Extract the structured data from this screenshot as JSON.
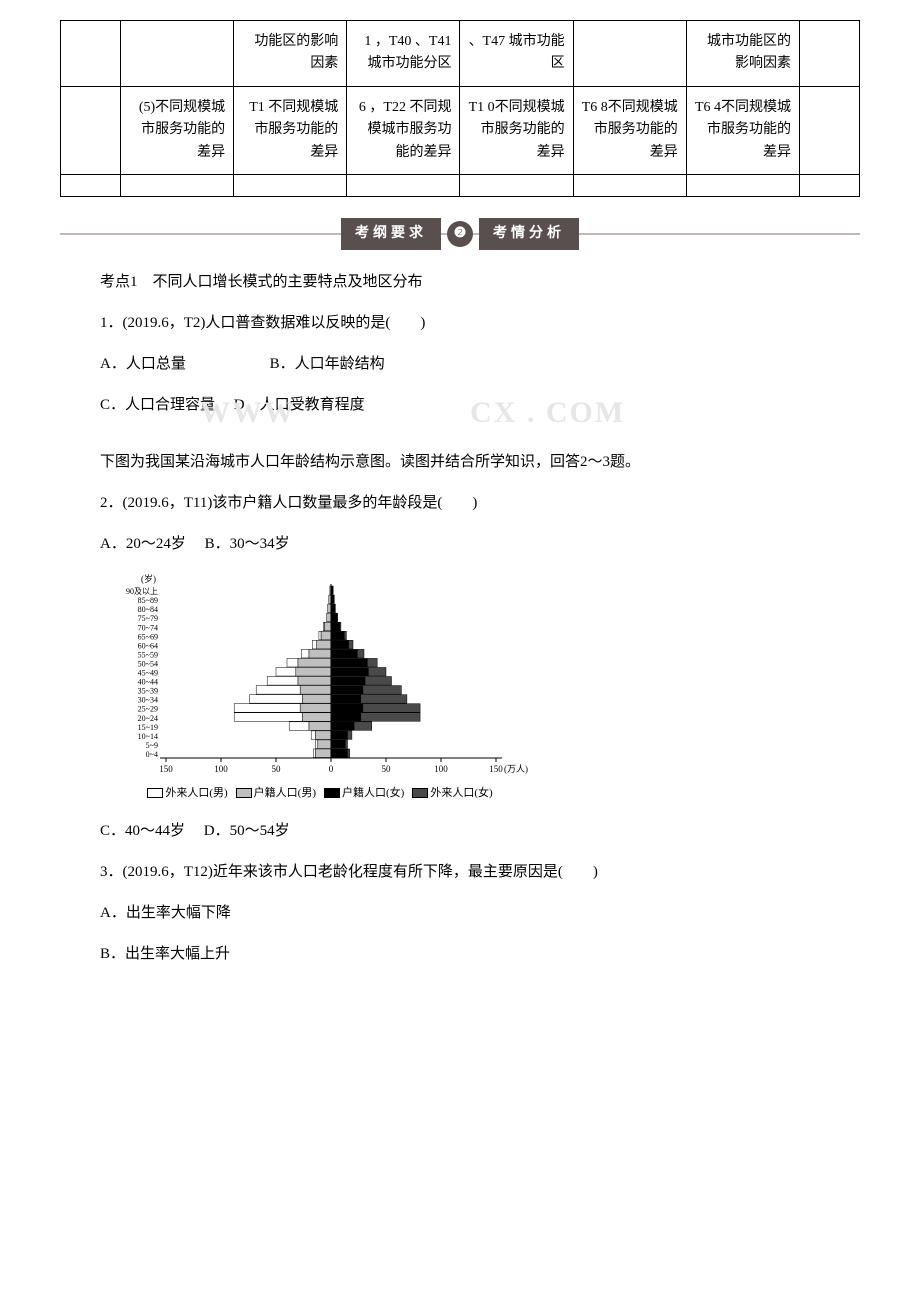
{
  "table": {
    "row1": {
      "c1": "",
      "c2": "",
      "c3": "功能区的影响因素",
      "c4": "1\n，T40\n、T41\n城市功能分区",
      "c5": "、T47\n城市功能区",
      "c6": "",
      "c7": "城市功能区的影响因素",
      "c8": ""
    },
    "row2": {
      "c1": "",
      "c2": "(5)不同规模城市服务功能的差异",
      "c3": "T1\n不同规模城市服务功能的差异",
      "c4": "6\n，T22\n不同规模城市服务功能的差异",
      "c5": "T1\n0不同规模城市服务功能的差异",
      "c6": "T6\n8不同规模城市服务功能的差异",
      "c7": "T6\n4不同规模城市服务功能的差异",
      "c8": ""
    },
    "row3": {
      "c1": "",
      "c2": "",
      "c3": "",
      "c4": "",
      "c5": "",
      "c6": "",
      "c7": "",
      "c8": ""
    }
  },
  "banner": {
    "left": "考纲要求",
    "dot": "❷",
    "right": "考情分析"
  },
  "kp1": "考点1　不同人口增长模式的主要特点及地区分布",
  "q1": {
    "stem": "1．(2019.6，T2)人口普查数据难以反映的是(　　)",
    "a": "A．人口总量",
    "b": "B．人口年龄结构",
    "c": "C．人口合理容量",
    "d": "D．人口受教育程度"
  },
  "watermark": {
    "left": "WWW",
    "right": "CX . COM"
  },
  "intro23": "下图为我国某沿海城市人口年龄结构示意图。读图并结合所学知识，回答2～3题。",
  "q2": {
    "stem": "2．(2019.6，T11)该市户籍人口数量最多的年龄段是(　　)",
    "a": "A．20～24岁",
    "b": "B．30～34岁",
    "c": "C．40～44岁",
    "d": "D．50～54岁"
  },
  "q3": {
    "stem": "3．(2019.6，T12)近年来该市人口老龄化程度有所下降，最主要原因是(　　)",
    "a": "A．出生率大幅下降",
    "b": "B．出生率大幅上升"
  },
  "chart": {
    "y_label_top": "(岁)",
    "x_unit": "(万人)",
    "age_labels": [
      "90及以上",
      "85~89",
      "80~84",
      "75~79",
      "70~74",
      "65~69",
      "60~64",
      "55~59",
      "50~54",
      "45~49",
      "40~44",
      "35~39",
      "30~34",
      "25~29",
      "20~24",
      "15~19",
      "10~14",
      "5~9",
      "0~4"
    ],
    "x_ticks": [
      "150",
      "100",
      "50",
      "0",
      "50",
      "100",
      "150"
    ],
    "legend": {
      "l1": "外来人口(男)",
      "l2": "户籍人口(男)",
      "l3": "户籍人口(女)",
      "l4": "外来人口(女)"
    },
    "colors": {
      "outer_m": "#ffffff",
      "huji_m": "#bfbfbf",
      "huji_f": "#000000",
      "outer_f": "#4a4a4a",
      "axis": "#000000"
    },
    "huji_m": [
      1,
      2,
      3,
      4,
      6,
      9,
      13,
      20,
      30,
      32,
      30,
      28,
      26,
      28,
      26,
      20,
      14,
      12,
      14
    ],
    "outer_m": [
      0,
      0,
      0,
      0,
      1,
      2,
      4,
      7,
      10,
      18,
      28,
      40,
      48,
      60,
      62,
      18,
      4,
      2,
      2
    ],
    "huji_f": [
      2,
      3,
      4,
      6,
      8,
      12,
      16,
      24,
      33,
      34,
      31,
      29,
      27,
      29,
      27,
      21,
      15,
      13,
      15
    ],
    "outer_f": [
      0,
      0,
      0,
      0,
      1,
      2,
      4,
      6,
      9,
      16,
      24,
      35,
      42,
      52,
      54,
      16,
      4,
      2,
      2
    ]
  }
}
